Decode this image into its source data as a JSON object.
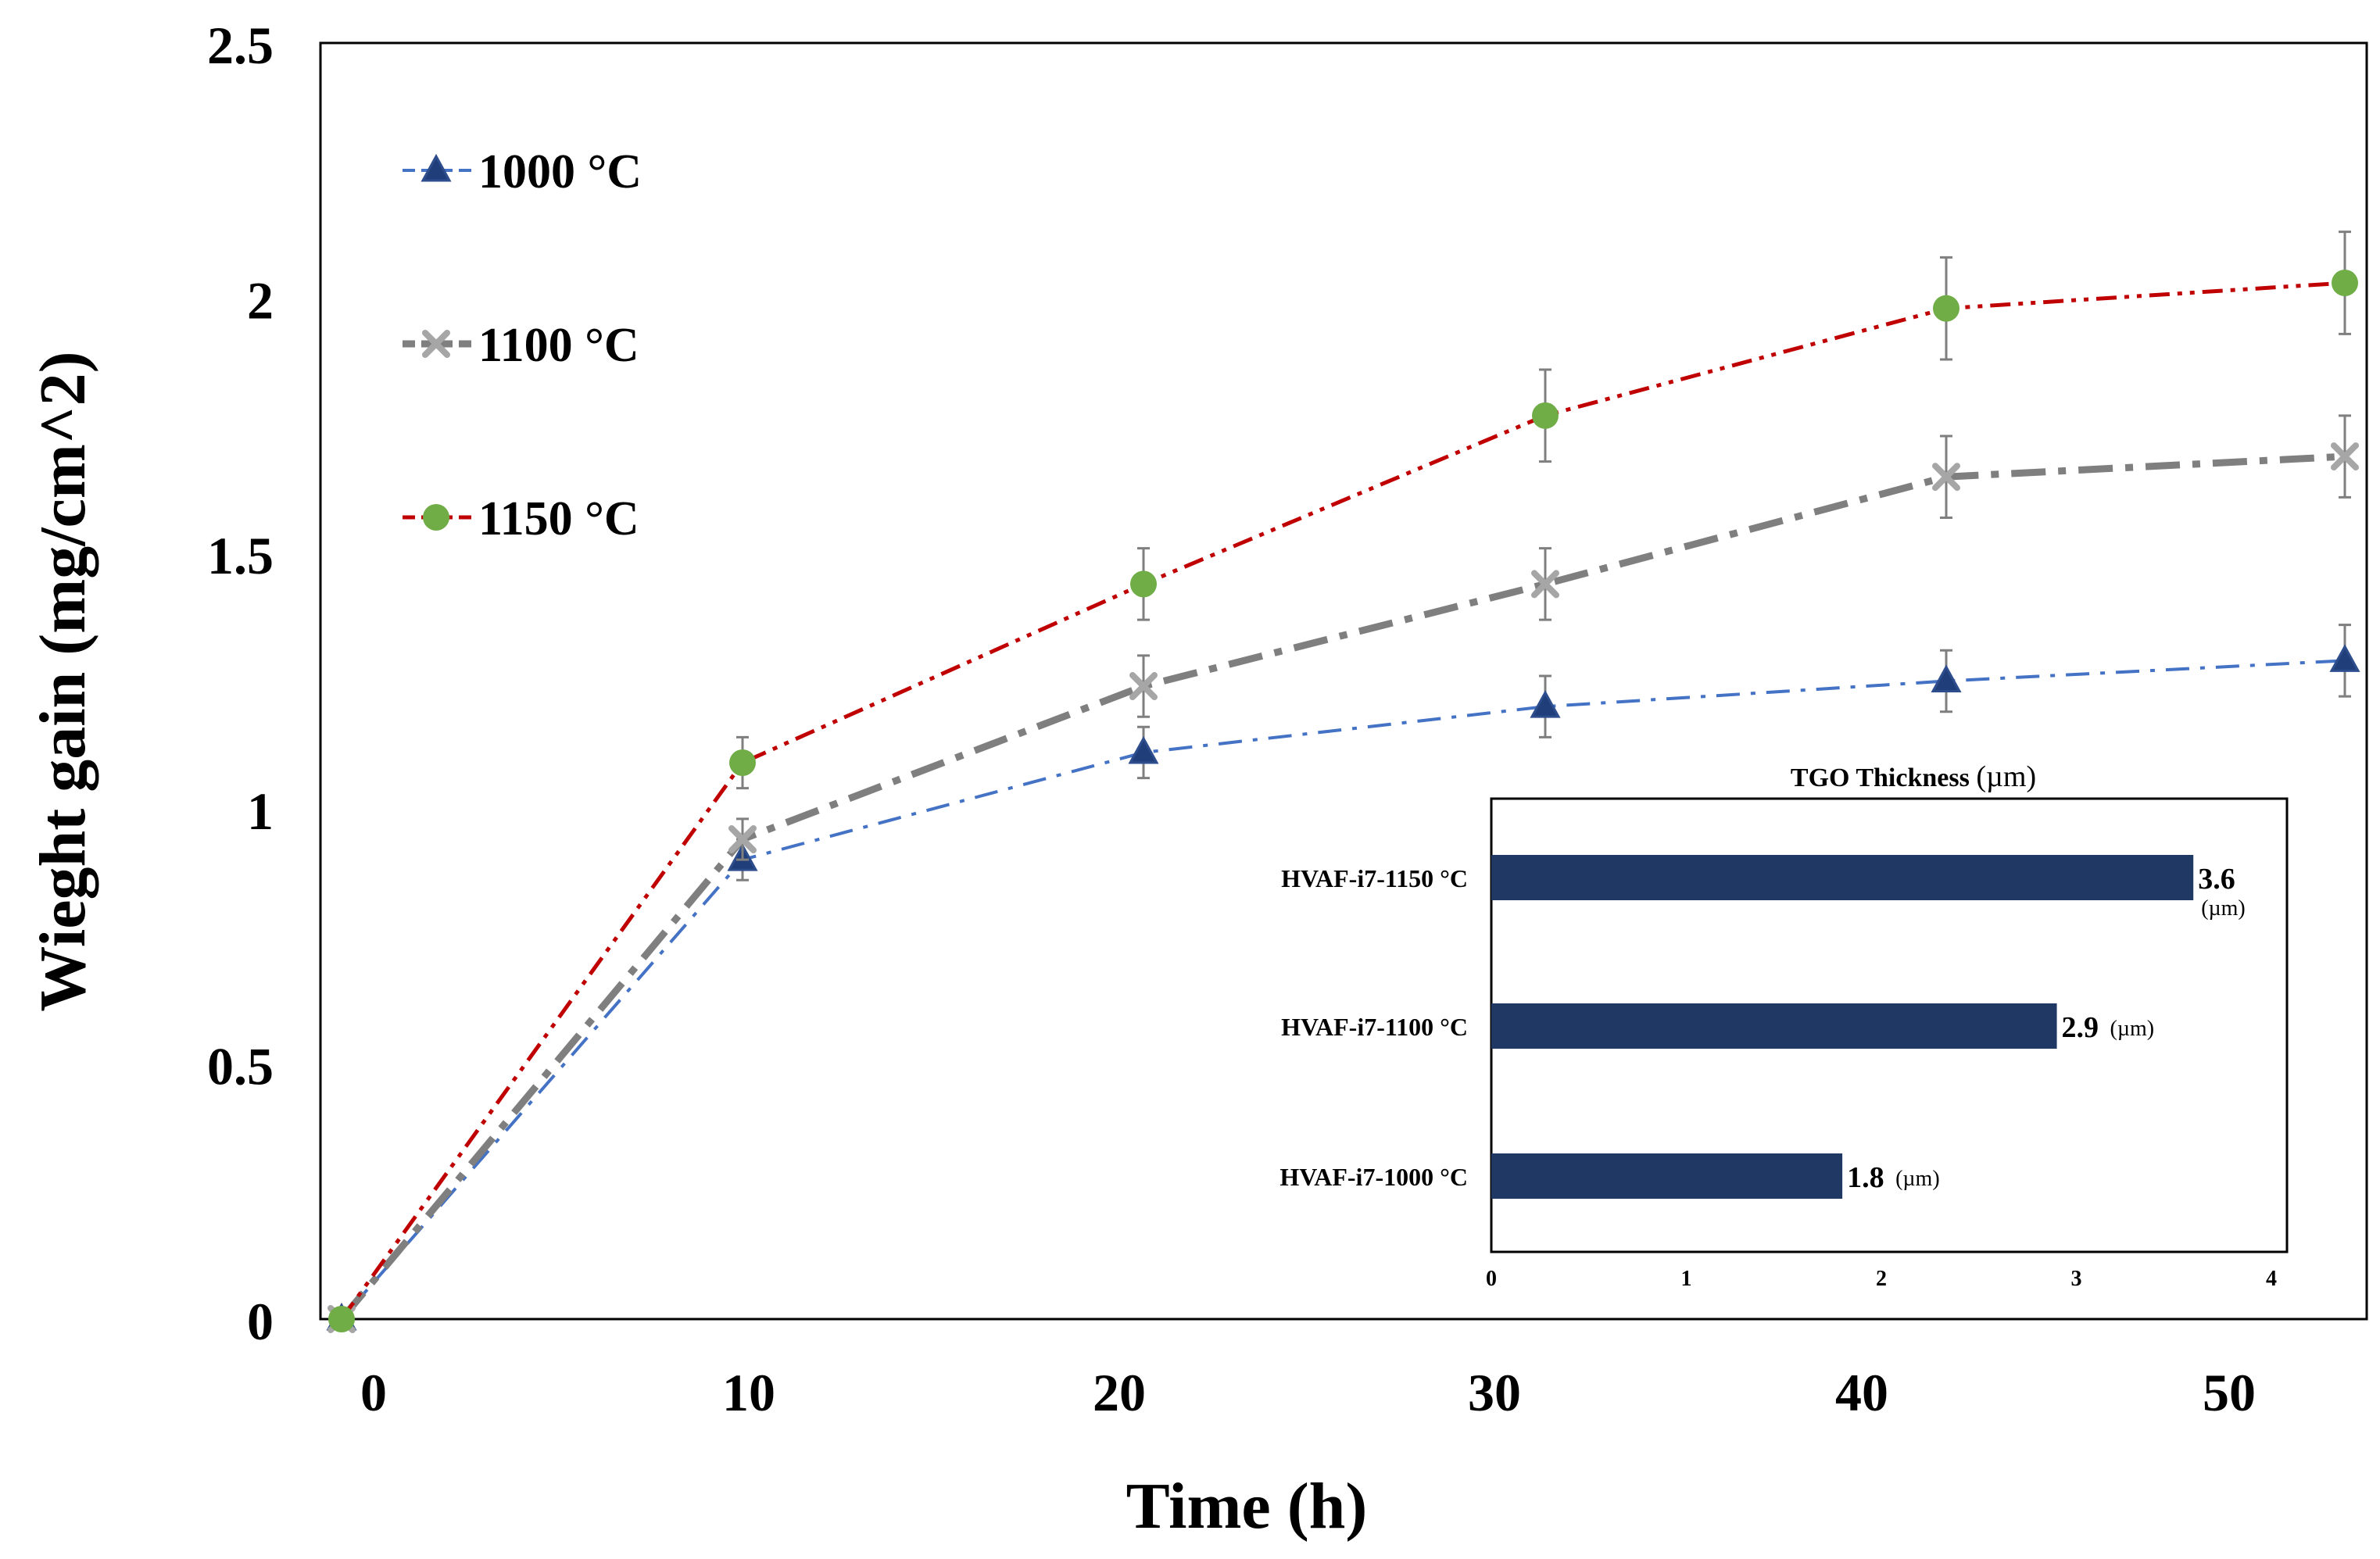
{
  "chart_data": [
    {
      "type": "line",
      "xlabel": "Time (h)",
      "ylabel": "Wieght gain (mg/cm^2)",
      "xlim": [
        -1,
        54
      ],
      "ylim": [
        0,
        2.5
      ],
      "xticks": [
        "0",
        "10",
        "20",
        "30",
        "40",
        "50"
      ],
      "xtick_values": [
        0,
        10,
        20,
        30,
        40,
        50
      ],
      "yticks": [
        "0",
        "0.5",
        "1",
        "1.5",
        "2",
        "2.5"
      ],
      "ytick_values": [
        0,
        0.5,
        1,
        1.5,
        2,
        2.5
      ],
      "x": [
        -1,
        10,
        21,
        32,
        43,
        54
      ],
      "legend_position": "top-left",
      "series": [
        {
          "name": "1000 °C",
          "marker": "triangle",
          "color": "#4472C4",
          "marker_color": "#1F3E7A",
          "dash": "dashdot",
          "values": [
            0,
            0.9,
            1.11,
            1.2,
            1.25,
            1.29
          ],
          "errors": [
            0,
            0.04,
            0.05,
            0.06,
            0.06,
            0.07
          ]
        },
        {
          "name": "1100 °C",
          "marker": "x",
          "color": "#7F7F7F",
          "marker_color": "#A6A6A6",
          "dash": "dashdot-thick",
          "values": [
            0,
            0.94,
            1.24,
            1.44,
            1.65,
            1.69
          ],
          "errors": [
            0,
            0.04,
            0.06,
            0.07,
            0.08,
            0.08
          ]
        },
        {
          "name": "1150 °C",
          "marker": "circle",
          "color": "#C00000",
          "marker_color": "#70AD47",
          "dash": "dashdotdot",
          "values": [
            0,
            1.09,
            1.44,
            1.77,
            1.98,
            2.03
          ],
          "errors": [
            0,
            0.05,
            0.07,
            0.09,
            0.1,
            0.1
          ]
        }
      ]
    },
    {
      "type": "bar",
      "orientation": "horizontal",
      "title": "TGO Thickness",
      "title_unit": "(µm)",
      "categories": [
        "HVAF-i7-1150 °C",
        "HVAF-i7-1100 °C",
        "HVAF-i7-1000 °C"
      ],
      "values": [
        3.6,
        2.9,
        1.8
      ],
      "value_labels": [
        "3.6",
        "2.9",
        "1.8"
      ],
      "unit_label": "(µm)",
      "xlim": [
        0,
        4
      ],
      "xticks": [
        "0",
        "1",
        "2",
        "3",
        "4"
      ],
      "xtick_values": [
        0,
        1,
        2,
        3,
        4
      ],
      "bar_color": "#1F3864"
    }
  ]
}
